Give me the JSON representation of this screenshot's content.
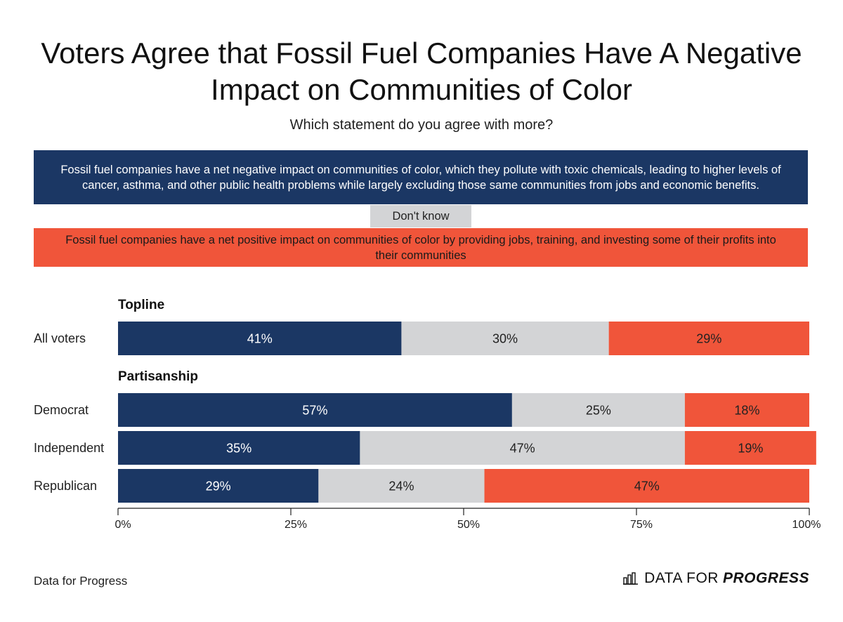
{
  "title_line1": "Voters Agree that Fossil Fuel Companies Have A Negative",
  "title_line2": "Impact on Communities of Color",
  "subtitle": "Which statement do you agree with more?",
  "legend": {
    "negative": "Fossil fuel companies have a net negative impact on communities of color, which they pollute with toxic chemicals, leading to higher levels of cancer, asthma, and other public health problems while largely excluding those same communities from jobs and economic benefits.",
    "dont_know": "Don't know",
    "positive": "Fossil fuel companies have a net positive impact on communities of color by providing jobs, training, and investing some of their profits into their communities"
  },
  "colors": {
    "negative": "#1b3764",
    "dont_know": "#d3d4d6",
    "positive": "#f0553a"
  },
  "chart_data": {
    "type": "bar",
    "orientation": "horizontal-stacked",
    "sections": [
      {
        "name": "Topline",
        "rows": [
          "All voters"
        ]
      },
      {
        "name": "Partisanship",
        "rows": [
          "Democrat",
          "Independent",
          "Republican"
        ]
      }
    ],
    "categories": [
      "All voters",
      "Democrat",
      "Independent",
      "Republican"
    ],
    "series": [
      {
        "name": "Net negative impact",
        "values": [
          41,
          57,
          35,
          29
        ]
      },
      {
        "name": "Don't know",
        "values": [
          30,
          25,
          47,
          24
        ]
      },
      {
        "name": "Net positive impact",
        "values": [
          29,
          18,
          19,
          47
        ]
      }
    ],
    "value_labels": [
      [
        "41%",
        "30%",
        "29%"
      ],
      [
        "57%",
        "25%",
        "18%"
      ],
      [
        "35%",
        "47%",
        "19%"
      ],
      [
        "29%",
        "24%",
        "47%"
      ]
    ],
    "xlim": [
      0,
      100
    ],
    "xticks": [
      0,
      25,
      50,
      75,
      100
    ],
    "xtick_labels": [
      "0%",
      "25%",
      "50%",
      "75%",
      "100%"
    ]
  },
  "footer": {
    "source": "Data for Progress",
    "brand_regular": "DATA FOR",
    "brand_bold": "PROGRESS",
    "brand_icon": "bar-chart-icon"
  }
}
